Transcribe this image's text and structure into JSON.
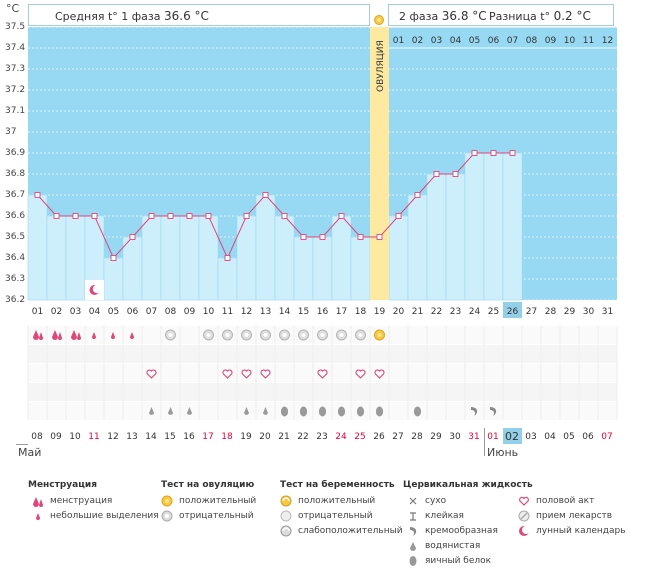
{
  "axis": {
    "unit": "°C",
    "ticks": [
      "37.5",
      "37.4",
      "37.3",
      "37.2",
      "37.1",
      "37",
      "36.9",
      "36.8",
      "36.7",
      "36.6",
      "36.5",
      "36.4",
      "36.3",
      "36.2"
    ]
  },
  "header": {
    "phase1_label": "Средняя t° 1 фаза",
    "phase1_value": "36.6 °C",
    "phase2_label": "2 фаза",
    "phase2_value": "36.8 °C",
    "diff_label": "Разница t°",
    "diff_value": "0.2 °C"
  },
  "ovulation_label": "ОВУЛЯЦИЯ",
  "phase2_days": [
    "01",
    "02",
    "03",
    "04",
    "05",
    "06",
    "07",
    "08",
    "09",
    "10",
    "11",
    "12"
  ],
  "cycle_days": [
    "01",
    "02",
    "03",
    "04",
    "05",
    "06",
    "07",
    "08",
    "09",
    "10",
    "11",
    "12",
    "13",
    "14",
    "15",
    "16",
    "17",
    "18",
    "19",
    "20",
    "21",
    "22",
    "23",
    "24",
    "25",
    "26",
    "27",
    "28",
    "29",
    "30",
    "31"
  ],
  "today_index": 25,
  "chart_data": {
    "type": "line",
    "x": [
      "01",
      "02",
      "03",
      "04",
      "05",
      "06",
      "07",
      "08",
      "09",
      "10",
      "11",
      "12",
      "13",
      "14",
      "15",
      "16",
      "17",
      "18",
      "19",
      "20",
      "21",
      "22",
      "23",
      "24",
      "25",
      "26"
    ],
    "series": [
      {
        "values": [
          36.7,
          36.6,
          36.6,
          36.6,
          36.4,
          36.5,
          36.6,
          36.6,
          36.6,
          36.6,
          36.4,
          36.6,
          36.7,
          36.6,
          36.5,
          36.5,
          36.6,
          36.5,
          36.5,
          36.6,
          36.7,
          36.8,
          36.8,
          36.9,
          36.9,
          36.9
        ]
      }
    ],
    "ylim": [
      36.2,
      37.5
    ],
    "ovulation_day": "19"
  },
  "calendar": {
    "dates": [
      "08",
      "09",
      "10",
      "11",
      "12",
      "13",
      "14",
      "15",
      "16",
      "17",
      "18",
      "19",
      "20",
      "21",
      "22",
      "23",
      "24",
      "25",
      "26",
      "27",
      "28",
      "29",
      "30",
      "31",
      "01",
      "02",
      "03",
      "04",
      "05",
      "06",
      "07"
    ],
    "weekend_index": [
      3,
      9,
      10,
      16,
      17,
      23,
      24,
      30
    ],
    "month_may": "Май",
    "month_june": "Июнь",
    "june_start_index": 24,
    "today_index": 25
  },
  "rows": {
    "moon": [
      3
    ],
    "menstruation": [
      [
        "big",
        0
      ],
      [
        "big",
        1
      ],
      [
        "big",
        2
      ],
      [
        "small",
        3
      ],
      [
        "small",
        4
      ],
      [
        "small",
        5
      ]
    ],
    "ovulation_test": [
      [
        "neg",
        7
      ],
      [
        "neg",
        9
      ],
      [
        "neg",
        10
      ],
      [
        "neg",
        11
      ],
      [
        "neg",
        12
      ],
      [
        "neg",
        13
      ],
      [
        "neg",
        14
      ],
      [
        "neg",
        15
      ],
      [
        "neg",
        16
      ],
      [
        "neg",
        17
      ],
      [
        "pos",
        18
      ]
    ],
    "intercourse": [
      6,
      10,
      11,
      12,
      15,
      17,
      18
    ],
    "mucus": [
      [
        "water",
        6
      ],
      [
        "water",
        7
      ],
      [
        "water",
        8
      ],
      [
        "water",
        11
      ],
      [
        "water",
        12
      ],
      [
        "egg",
        13
      ],
      [
        "egg",
        14
      ],
      [
        "egg",
        15
      ],
      [
        "egg",
        16
      ],
      [
        "egg",
        17
      ],
      [
        "egg",
        18
      ],
      [
        "egg",
        20
      ],
      [
        "creamy",
        23
      ],
      [
        "creamy",
        24
      ]
    ]
  },
  "legend": {
    "menstruation_title": "Менструация",
    "menstruation_items": [
      "менструация",
      "небольшие выделения"
    ],
    "ovulation_test_title": "Тест на овуляцию",
    "ovulation_test_items": [
      "положительный",
      "отрицательный"
    ],
    "pregnancy_test_title": "Тест на беременность",
    "pregnancy_test_items": [
      "положительный",
      "отрицательный",
      "слабоположительный"
    ],
    "mucus_title": "Цервикальная жидкость",
    "mucus_items": [
      "сухо",
      "клейкая",
      "кремообразная",
      "водянистая",
      "яичный белок"
    ],
    "other_items": [
      "половой акт",
      "прием лекарств",
      "лунный календарь"
    ]
  },
  "colors": {
    "sky": "#97d9f2",
    "bar_fill": "#cdeffc",
    "ovulation": "#fdeaa0",
    "line": "#e0467a",
    "weekend": "#e8003a",
    "today": "#94cfe8"
  }
}
